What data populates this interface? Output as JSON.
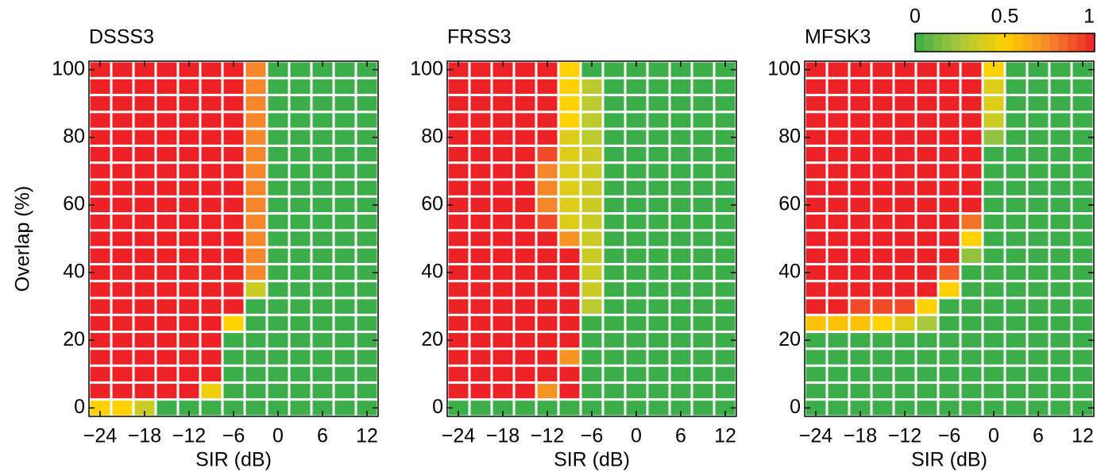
{
  "chart_data": [
    {
      "type": "heatmap",
      "title": "DSSS3",
      "xlabel": "SIR  (dB)",
      "ylabel": "Overlap  (%)",
      "x": [
        -24,
        -21,
        -18,
        -15,
        -12,
        -9,
        -6,
        -3,
        0,
        3,
        6,
        9,
        12
      ],
      "y": [
        0,
        5,
        10,
        15,
        20,
        25,
        30,
        35,
        40,
        45,
        50,
        55,
        60,
        65,
        70,
        75,
        80,
        85,
        90,
        95,
        100
      ],
      "xlim": [
        -25.5,
        13.5
      ],
      "ylim": [
        -2.5,
        102.5
      ],
      "xticks": [
        {
          "value": -24,
          "label": "−24"
        },
        {
          "value": -18,
          "label": "−18"
        },
        {
          "value": -12,
          "label": "−12"
        },
        {
          "value": -6,
          "label": "−6"
        },
        0,
        6,
        12
      ],
      "yticks": [
        0,
        20,
        40,
        60,
        80,
        100
      ],
      "z": [
        [
          0.5,
          0.5,
          0.35,
          0,
          0,
          0,
          0,
          0,
          0,
          0,
          0,
          0,
          0
        ],
        [
          1,
          1,
          1,
          1,
          1,
          0.45,
          0,
          0,
          0,
          0,
          0,
          0,
          0
        ],
        [
          1,
          1,
          1,
          1,
          1,
          1,
          0,
          0,
          0,
          0,
          0,
          0,
          0
        ],
        [
          1,
          1,
          1,
          1,
          1,
          1,
          0,
          0,
          0,
          0,
          0,
          0,
          0
        ],
        [
          1,
          1,
          1,
          1,
          1,
          1,
          0,
          0,
          0,
          0,
          0,
          0,
          0
        ],
        [
          1,
          1,
          1,
          1,
          1,
          1,
          0.5,
          0,
          0,
          0,
          0,
          0,
          0
        ],
        [
          1,
          1,
          1,
          1,
          1,
          1,
          1,
          0,
          0,
          0,
          0,
          0,
          0
        ],
        [
          1,
          1,
          1,
          1,
          1,
          1,
          1,
          0.35,
          0,
          0,
          0,
          0,
          0
        ],
        [
          1,
          1,
          1,
          1,
          1,
          1,
          1,
          0.75,
          0,
          0,
          0,
          0,
          0
        ],
        [
          1,
          1,
          1,
          1,
          1,
          1,
          1,
          0.75,
          0,
          0,
          0,
          0,
          0
        ],
        [
          1,
          1,
          1,
          1,
          1,
          1,
          1,
          0.75,
          0,
          0,
          0,
          0,
          0
        ],
        [
          1,
          1,
          1,
          1,
          1,
          1,
          1,
          0.75,
          0,
          0,
          0,
          0,
          0
        ],
        [
          1,
          1,
          1,
          1,
          1,
          1,
          1,
          0.75,
          0,
          0,
          0,
          0,
          0
        ],
        [
          1,
          1,
          1,
          1,
          1,
          1,
          1,
          0.75,
          0,
          0,
          0,
          0,
          0
        ],
        [
          1,
          1,
          1,
          1,
          1,
          1,
          1,
          0.75,
          0,
          0,
          0,
          0,
          0
        ],
        [
          1,
          1,
          1,
          1,
          1,
          1,
          1,
          0.75,
          0,
          0,
          0,
          0,
          0
        ],
        [
          1,
          1,
          1,
          1,
          1,
          1,
          1,
          0.75,
          0,
          0,
          0,
          0,
          0
        ],
        [
          1,
          1,
          1,
          1,
          1,
          1,
          1,
          0.75,
          0,
          0,
          0,
          0,
          0
        ],
        [
          1,
          1,
          1,
          1,
          1,
          1,
          1,
          0.75,
          0,
          0,
          0,
          0,
          0
        ],
        [
          1,
          1,
          1,
          1,
          1,
          1,
          1,
          0.75,
          0,
          0,
          0,
          0,
          0
        ],
        [
          1,
          1,
          1,
          1,
          1,
          1,
          1,
          0.75,
          0,
          0,
          0,
          0,
          0
        ]
      ]
    },
    {
      "type": "heatmap",
      "title": "FRSS3",
      "xlabel": "SIR  (dB)",
      "x": [
        -24,
        -21,
        -18,
        -15,
        -12,
        -9,
        -6,
        -3,
        0,
        3,
        6,
        9,
        12
      ],
      "y": [
        0,
        5,
        10,
        15,
        20,
        25,
        30,
        35,
        40,
        45,
        50,
        55,
        60,
        65,
        70,
        75,
        80,
        85,
        90,
        95,
        100
      ],
      "xlim": [
        -25.5,
        13.5
      ],
      "ylim": [
        -2.5,
        102.5
      ],
      "xticks": [
        {
          "value": -24,
          "label": "−24"
        },
        {
          "value": -18,
          "label": "−18"
        },
        {
          "value": -12,
          "label": "−12"
        },
        {
          "value": -6,
          "label": "−6"
        },
        0,
        6,
        12
      ],
      "yticks": [
        0,
        20,
        40,
        60,
        80,
        100
      ],
      "z": [
        [
          0,
          0,
          0,
          0,
          0,
          0,
          0,
          0,
          0,
          0,
          0,
          0,
          0
        ],
        [
          1,
          1,
          1,
          1,
          0.7,
          1,
          0,
          0,
          0,
          0,
          0,
          0,
          0
        ],
        [
          1,
          1,
          1,
          1,
          1,
          1,
          0,
          0,
          0,
          0,
          0,
          0,
          0
        ],
        [
          1,
          1,
          1,
          1,
          1,
          0.7,
          0,
          0,
          0,
          0,
          0,
          0,
          0
        ],
        [
          1,
          1,
          1,
          1,
          1,
          1,
          0,
          0,
          0,
          0,
          0,
          0,
          0
        ],
        [
          1,
          1,
          1,
          1,
          1,
          1,
          0,
          0,
          0,
          0,
          0,
          0,
          0
        ],
        [
          1,
          1,
          1,
          1,
          1,
          1,
          0.3,
          0,
          0,
          0,
          0,
          0,
          0
        ],
        [
          1,
          1,
          1,
          1,
          1,
          1,
          0.35,
          0,
          0,
          0,
          0,
          0,
          0
        ],
        [
          1,
          1,
          1,
          1,
          1,
          1,
          0.35,
          0,
          0,
          0,
          0,
          0,
          0
        ],
        [
          1,
          1,
          1,
          1,
          1,
          1,
          0.35,
          0,
          0,
          0,
          0,
          0,
          0
        ],
        [
          1,
          1,
          1,
          1,
          1,
          0.7,
          0.35,
          0,
          0,
          0,
          0,
          0,
          0
        ],
        [
          1,
          1,
          1,
          1,
          0.9,
          0.4,
          0.35,
          0,
          0,
          0,
          0,
          0,
          0
        ],
        [
          1,
          1,
          1,
          1,
          0.75,
          0.4,
          0.35,
          0,
          0,
          0,
          0,
          0,
          0
        ],
        [
          1,
          1,
          1,
          1,
          0.75,
          0.4,
          0.35,
          0,
          0,
          0,
          0,
          0,
          0
        ],
        [
          1,
          1,
          1,
          1,
          0.75,
          0.4,
          0.35,
          0,
          0,
          0,
          0,
          0,
          0
        ],
        [
          1,
          1,
          1,
          1,
          0.9,
          0.4,
          0.35,
          0,
          0,
          0,
          0,
          0,
          0
        ],
        [
          1,
          1,
          1,
          1,
          1,
          0.4,
          0.3,
          0,
          0,
          0,
          0,
          0,
          0
        ],
        [
          1,
          1,
          1,
          1,
          1,
          0.5,
          0.3,
          0,
          0,
          0,
          0,
          0,
          0
        ],
        [
          1,
          1,
          1,
          1,
          1,
          0.5,
          0.3,
          0,
          0,
          0,
          0,
          0,
          0
        ],
        [
          1,
          1,
          1,
          1,
          1,
          0.5,
          0.3,
          0,
          0,
          0,
          0,
          0,
          0
        ],
        [
          1,
          1,
          1,
          1,
          1,
          0.5,
          0,
          0,
          0,
          0,
          0,
          0,
          0
        ]
      ]
    },
    {
      "type": "heatmap",
      "title": "MFSK3",
      "xlabel": "SIR  (dB)",
      "x": [
        -24,
        -21,
        -18,
        -15,
        -12,
        -9,
        -6,
        -3,
        0,
        3,
        6,
        9,
        12
      ],
      "y": [
        0,
        5,
        10,
        15,
        20,
        25,
        30,
        35,
        40,
        45,
        50,
        55,
        60,
        65,
        70,
        75,
        80,
        85,
        90,
        95,
        100
      ],
      "xlim": [
        -25.5,
        13.5
      ],
      "ylim": [
        -2.5,
        102.5
      ],
      "xticks": [
        {
          "value": -24,
          "label": "−24"
        },
        {
          "value": -18,
          "label": "−18"
        },
        {
          "value": -12,
          "label": "−12"
        },
        {
          "value": -6,
          "label": "−6"
        },
        0,
        6,
        12
      ],
      "yticks": [
        0,
        20,
        40,
        60,
        80,
        100
      ],
      "z": [
        [
          0,
          0,
          0,
          0,
          0,
          0,
          0,
          0,
          0,
          0,
          0,
          0,
          0
        ],
        [
          0,
          0,
          0,
          0,
          0,
          0,
          0,
          0,
          0,
          0,
          0,
          0,
          0
        ],
        [
          0,
          0,
          0,
          0,
          0,
          0,
          0,
          0,
          0,
          0,
          0,
          0,
          0
        ],
        [
          0,
          0,
          0,
          0,
          0,
          0,
          0,
          0,
          0,
          0,
          0,
          0,
          0
        ],
        [
          0,
          0,
          0,
          0,
          0,
          0,
          0,
          0,
          0,
          0,
          0,
          0,
          0
        ],
        [
          0.55,
          0.55,
          0.55,
          0.5,
          0.4,
          0.25,
          0,
          0,
          0,
          0,
          0,
          0,
          0
        ],
        [
          1,
          1,
          0.9,
          0.9,
          0.9,
          0.5,
          0,
          0,
          0,
          0,
          0,
          0,
          0
        ],
        [
          1,
          1,
          1,
          1,
          1,
          1,
          0.5,
          0,
          0,
          0,
          0,
          0,
          0
        ],
        [
          1,
          1,
          1,
          1,
          1,
          1,
          0.85,
          0,
          0,
          0,
          0,
          0,
          0
        ],
        [
          1,
          1,
          1,
          1,
          1,
          1,
          1,
          0.2,
          0,
          0,
          0,
          0,
          0
        ],
        [
          1,
          1,
          1,
          1,
          1,
          1,
          1,
          0.5,
          0,
          0,
          0,
          0,
          0
        ],
        [
          1,
          1,
          1,
          1,
          1,
          1,
          1,
          0.8,
          0,
          0,
          0,
          0,
          0
        ],
        [
          1,
          1,
          1,
          1,
          1,
          1,
          1,
          1,
          0,
          0,
          0,
          0,
          0
        ],
        [
          1,
          1,
          1,
          1,
          1,
          1,
          1,
          1,
          0,
          0,
          0,
          0,
          0
        ],
        [
          1,
          1,
          1,
          1,
          1,
          1,
          1,
          1,
          0,
          0,
          0,
          0,
          0
        ],
        [
          1,
          1,
          1,
          1,
          1,
          1,
          1,
          1,
          0,
          0,
          0,
          0,
          0
        ],
        [
          1,
          1,
          1,
          1,
          1,
          1,
          1,
          1,
          0.2,
          0,
          0,
          0,
          0
        ],
        [
          1,
          1,
          1,
          1,
          1,
          1,
          1,
          1,
          0.35,
          0,
          0,
          0,
          0
        ],
        [
          1,
          1,
          1,
          1,
          1,
          1,
          1,
          1,
          0.4,
          0,
          0,
          0,
          0
        ],
        [
          1,
          1,
          1,
          1,
          1,
          1,
          1,
          1,
          0.4,
          0,
          0,
          0,
          0
        ],
        [
          1,
          1,
          1,
          1,
          1,
          1,
          1,
          1,
          0.5,
          0,
          0,
          0,
          0
        ]
      ],
      "colorbar": {
        "clim": [
          0,
          1
        ],
        "ticks": [
          0,
          0.5,
          1
        ],
        "colormap": [
          "#3cae49",
          "#a9c83b",
          "#ffd100",
          "#f5862a",
          "#ec2227"
        ]
      }
    }
  ]
}
